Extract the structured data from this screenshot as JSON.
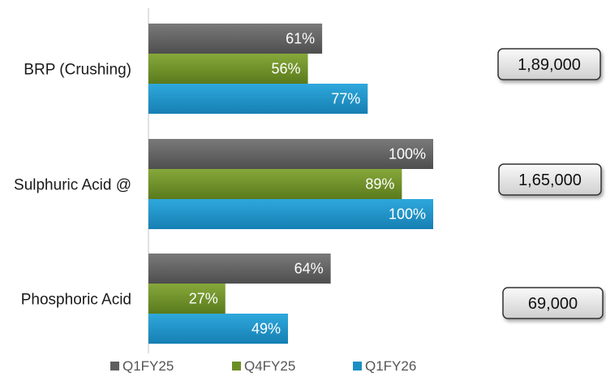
{
  "chart_data": {
    "type": "bar",
    "orientation": "horizontal",
    "categories": [
      "BRP (Crushing)",
      "Sulphuric Acid @",
      "Phosphoric Acid"
    ],
    "series": [
      {
        "name": "Q1FY25",
        "values": [
          61,
          100,
          64
        ],
        "labels": [
          "61%",
          "100%",
          "64%"
        ],
        "color": "#5f5f5f"
      },
      {
        "name": "Q4FY25",
        "values": [
          56,
          89,
          27
        ],
        "labels": [
          "56%",
          "89%",
          "27%"
        ],
        "color": "#6b8e23"
      },
      {
        "name": "Q1FY26",
        "values": [
          77,
          100,
          49
        ],
        "labels": [
          "77%",
          "100%",
          "49%"
        ],
        "color": "#1b8fc4"
      }
    ],
    "xlim": [
      0,
      100
    ],
    "capacities": [
      "1,89,000",
      "1,65,000",
      "69,000"
    ],
    "legend_position": "bottom",
    "grid": false
  }
}
